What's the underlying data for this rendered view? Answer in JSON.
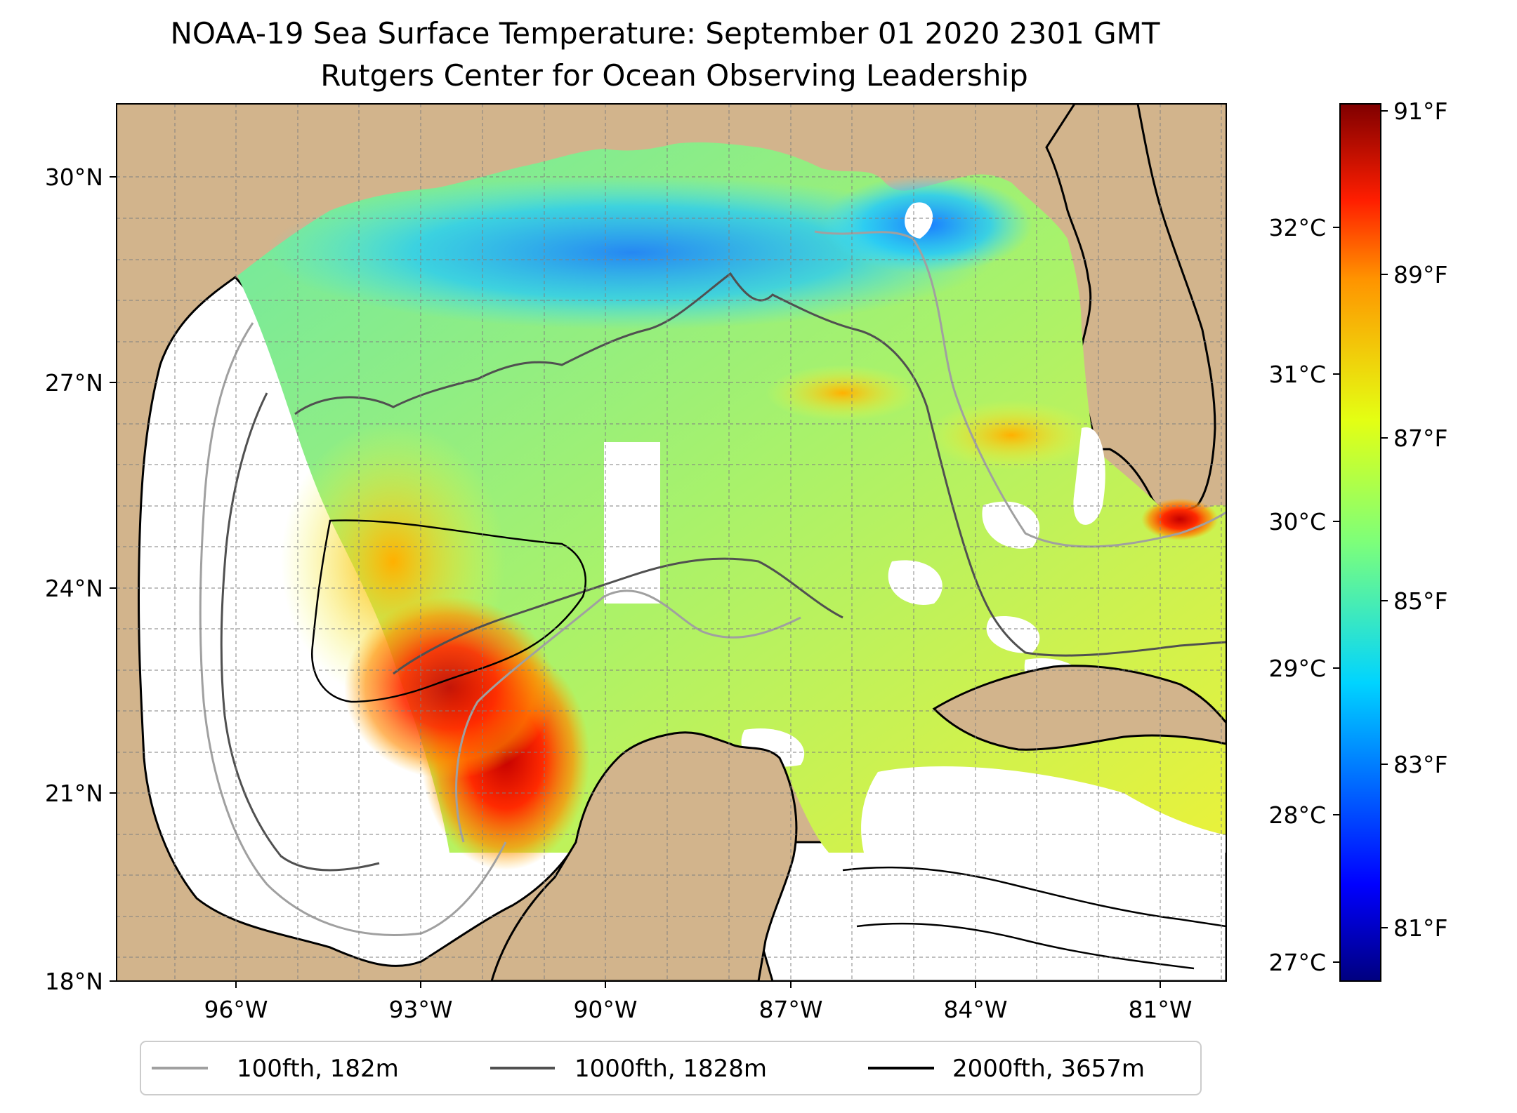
{
  "title_line1": "NOAA-19 Sea Surface Temperature: September 01 2020 2301 GMT",
  "title_line2": "Rutgers Center for Ocean Observing Leadership",
  "map": {
    "lat_labels": [
      "30°N",
      "27°N",
      "24°N",
      "21°N",
      "18°N"
    ],
    "lon_labels": [
      "96°W",
      "93°W",
      "90°W",
      "87°W",
      "84°W",
      "81°W"
    ],
    "land_color": "#d2b48c",
    "nodata_color": "#ffffff"
  },
  "colorbar": {
    "colormap": "jet",
    "f_labels": [
      "91°F",
      "89°F",
      "87°F",
      "85°F",
      "83°F",
      "81°F"
    ],
    "c_labels": [
      "32°C",
      "31°C",
      "30°C",
      "29°C",
      "28°C",
      "27°C"
    ]
  },
  "legend": {
    "items": [
      {
        "label": "100fth, 182m",
        "color": "#a0a0a0"
      },
      {
        "label": "1000fth, 1828m",
        "color": "#505050"
      },
      {
        "label": "2000fth, 3657m",
        "color": "#000000"
      }
    ]
  }
}
